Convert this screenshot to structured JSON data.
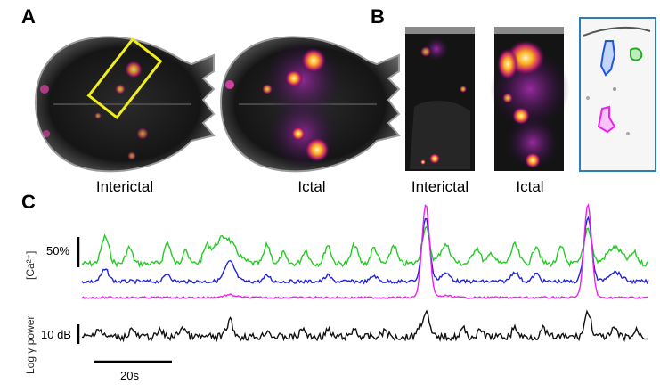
{
  "panels": {
    "a": {
      "letter": "A",
      "interictal_label": "Interictal",
      "ictal_label": "Ictal"
    },
    "b": {
      "letter": "B",
      "interictal_label": "Interictal",
      "ictal_label": "Ictal"
    },
    "c": {
      "letter": "C"
    }
  },
  "traces": {
    "ca_label": "[Ca²⁺]",
    "ca_scale": "50%",
    "lfp_label": "Log γ power",
    "lfp_scale": "10 dB",
    "time_scale": "20s"
  },
  "colors": {
    "roi_green": "#22cc22",
    "roi_blue": "#2222dd",
    "roi_magenta": "#ee22ee",
    "lfp": "#111111",
    "highlight_box": "#f2ee1a",
    "inset_border": "#2a7fb0"
  }
}
